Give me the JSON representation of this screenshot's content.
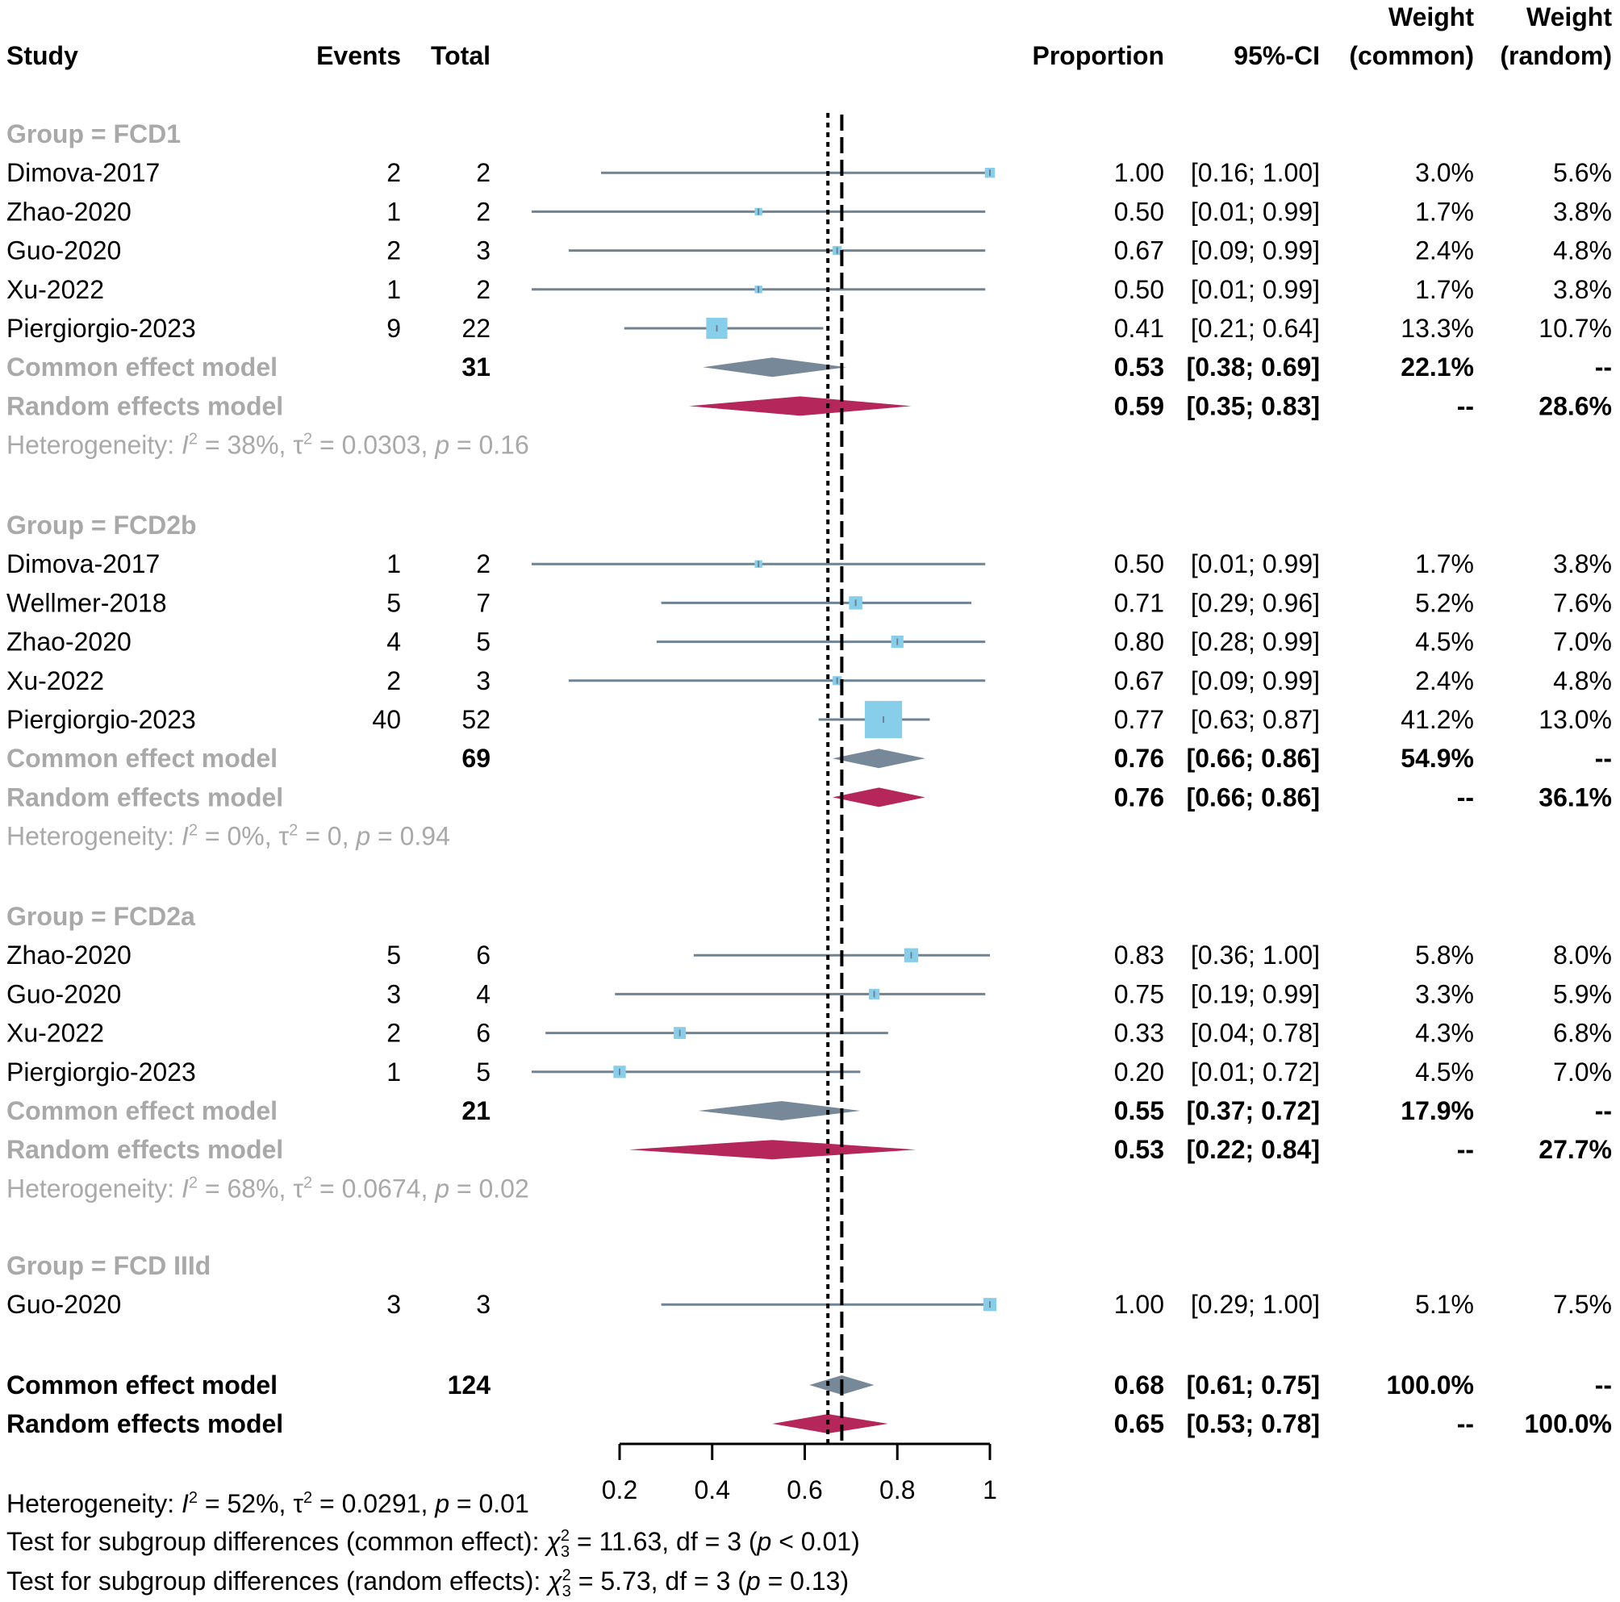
{
  "chart_data": {
    "type": "forest",
    "columns": {
      "study": "Study",
      "events": "Events",
      "total": "Total",
      "proportion": "Proportion",
      "ci": "95%-CI",
      "weight_common": [
        "Weight",
        "(common)"
      ],
      "weight_random": [
        "Weight",
        "(random)"
      ]
    },
    "xaxis": {
      "min": 0.2,
      "max": 1.0,
      "ticks": [
        "0.2",
        "0.4",
        "0.6",
        "0.8",
        "1"
      ],
      "tick_values": [
        0.2,
        0.4,
        0.6,
        0.8,
        1.0
      ]
    },
    "reference_lines": {
      "common": 0.68,
      "random": 0.65
    },
    "groups": [
      {
        "label": "Group = FCD1",
        "studies": [
          {
            "name": "Dimova-2017",
            "events": "2",
            "total": "2",
            "prop": "1.00",
            "ci": "[0.16; 1.00]",
            "wc": "3.0%",
            "wr": "5.6%",
            "est": 1.0,
            "lo": 0.16,
            "hi": 1.0,
            "w": 3.0
          },
          {
            "name": "Zhao-2020",
            "events": "1",
            "total": "2",
            "prop": "0.50",
            "ci": "[0.01; 0.99]",
            "wc": "1.7%",
            "wr": "3.8%",
            "est": 0.5,
            "lo": 0.01,
            "hi": 0.99,
            "w": 1.7
          },
          {
            "name": "Guo-2020",
            "events": "2",
            "total": "3",
            "prop": "0.67",
            "ci": "[0.09; 0.99]",
            "wc": "2.4%",
            "wr": "4.8%",
            "est": 0.67,
            "lo": 0.09,
            "hi": 0.99,
            "w": 2.4
          },
          {
            "name": "Xu-2022",
            "events": "1",
            "total": "2",
            "prop": "0.50",
            "ci": "[0.01; 0.99]",
            "wc": "1.7%",
            "wr": "3.8%",
            "est": 0.5,
            "lo": 0.01,
            "hi": 0.99,
            "w": 1.7
          },
          {
            "name": "Piergiorgio-2023",
            "events": "9",
            "total": "22",
            "prop": "0.41",
            "ci": "[0.21; 0.64]",
            "wc": "13.3%",
            "wr": "10.7%",
            "est": 0.41,
            "lo": 0.21,
            "hi": 0.64,
            "w": 13.3
          }
        ],
        "common": {
          "label": "Common effect model",
          "total": "31",
          "prop": "0.53",
          "ci": "[0.38; 0.69]",
          "wc": "22.1%",
          "wr": "--",
          "est": 0.53,
          "lo": 0.38,
          "hi": 0.69
        },
        "random": {
          "label": "Random effects model",
          "prop": "0.59",
          "ci": "[0.35; 0.83]",
          "wc": "--",
          "wr": "28.6%",
          "est": 0.59,
          "lo": 0.35,
          "hi": 0.83
        },
        "het": {
          "pre": "Heterogeneity: ",
          "i": "I",
          "rest1": " = 38%, τ",
          "rest2": " = 0.0303, ",
          "p": "p",
          "rest3": " = 0.16"
        }
      },
      {
        "label": "Group = FCD2b",
        "studies": [
          {
            "name": "Dimova-2017",
            "events": "1",
            "total": "2",
            "prop": "0.50",
            "ci": "[0.01; 0.99]",
            "wc": "1.7%",
            "wr": "3.8%",
            "est": 0.5,
            "lo": 0.01,
            "hi": 0.99,
            "w": 1.7
          },
          {
            "name": "Wellmer-2018",
            "events": "5",
            "total": "7",
            "prop": "0.71",
            "ci": "[0.29; 0.96]",
            "wc": "5.2%",
            "wr": "7.6%",
            "est": 0.71,
            "lo": 0.29,
            "hi": 0.96,
            "w": 5.2
          },
          {
            "name": "Zhao-2020",
            "events": "4",
            "total": "5",
            "prop": "0.80",
            "ci": "[0.28; 0.99]",
            "wc": "4.5%",
            "wr": "7.0%",
            "est": 0.8,
            "lo": 0.28,
            "hi": 0.99,
            "w": 4.5
          },
          {
            "name": "Xu-2022",
            "events": "2",
            "total": "3",
            "prop": "0.67",
            "ci": "[0.09; 0.99]",
            "wc": "2.4%",
            "wr": "4.8%",
            "est": 0.67,
            "lo": 0.09,
            "hi": 0.99,
            "w": 2.4
          },
          {
            "name": "Piergiorgio-2023",
            "events": "40",
            "total": "52",
            "prop": "0.77",
            "ci": "[0.63; 0.87]",
            "wc": "41.2%",
            "wr": "13.0%",
            "est": 0.77,
            "lo": 0.63,
            "hi": 0.87,
            "w": 41.2
          }
        ],
        "common": {
          "label": "Common effect model",
          "total": "69",
          "prop": "0.76",
          "ci": "[0.66; 0.86]",
          "wc": "54.9%",
          "wr": "--",
          "est": 0.76,
          "lo": 0.66,
          "hi": 0.86
        },
        "random": {
          "label": "Random effects model",
          "prop": "0.76",
          "ci": "[0.66; 0.86]",
          "wc": "--",
          "wr": "36.1%",
          "est": 0.76,
          "lo": 0.66,
          "hi": 0.86
        },
        "het": {
          "pre": "Heterogeneity: ",
          "i": "I",
          "rest1": " = 0%, τ",
          "rest2": " = 0, ",
          "p": "p",
          "rest3": " = 0.94"
        }
      },
      {
        "label": "Group = FCD2a",
        "studies": [
          {
            "name": "Zhao-2020",
            "events": "5",
            "total": "6",
            "prop": "0.83",
            "ci": "[0.36; 1.00]",
            "wc": "5.8%",
            "wr": "8.0%",
            "est": 0.83,
            "lo": 0.36,
            "hi": 1.0,
            "w": 5.8
          },
          {
            "name": "Guo-2020",
            "events": "3",
            "total": "4",
            "prop": "0.75",
            "ci": "[0.19; 0.99]",
            "wc": "3.3%",
            "wr": "5.9%",
            "est": 0.75,
            "lo": 0.19,
            "hi": 0.99,
            "w": 3.3
          },
          {
            "name": "Xu-2022",
            "events": "2",
            "total": "6",
            "prop": "0.33",
            "ci": "[0.04; 0.78]",
            "wc": "4.3%",
            "wr": "6.8%",
            "est": 0.33,
            "lo": 0.04,
            "hi": 0.78,
            "w": 4.3
          },
          {
            "name": "Piergiorgio-2023",
            "events": "1",
            "total": "5",
            "prop": "0.20",
            "ci": "[0.01; 0.72]",
            "wc": "4.5%",
            "wr": "7.0%",
            "est": 0.2,
            "lo": 0.01,
            "hi": 0.72,
            "w": 4.5
          }
        ],
        "common": {
          "label": "Common effect model",
          "total": "21",
          "prop": "0.55",
          "ci": "[0.37; 0.72]",
          "wc": "17.9%",
          "wr": "--",
          "est": 0.55,
          "lo": 0.37,
          "hi": 0.72
        },
        "random": {
          "label": "Random effects model",
          "prop": "0.53",
          "ci": "[0.22; 0.84]",
          "wc": "--",
          "wr": "27.7%",
          "est": 0.53,
          "lo": 0.22,
          "hi": 0.84
        },
        "het": {
          "pre": "Heterogeneity: ",
          "i": "I",
          "rest1": " = 68%, τ",
          "rest2": " = 0.0674, ",
          "p": "p",
          "rest3": " = 0.02"
        }
      },
      {
        "label": "Group = FCD IIId",
        "studies": [
          {
            "name": "Guo-2020",
            "events": "3",
            "total": "3",
            "prop": "1.00",
            "ci": "[0.29; 1.00]",
            "wc": "5.1%",
            "wr": "7.5%",
            "est": 1.0,
            "lo": 0.29,
            "hi": 1.0,
            "w": 5.1
          }
        ]
      }
    ],
    "overall": {
      "common": {
        "label": "Common effect model",
        "total": "124",
        "prop": "0.68",
        "ci": "[0.61; 0.75]",
        "wc": "100.0%",
        "wr": "--",
        "est": 0.68,
        "lo": 0.61,
        "hi": 0.75
      },
      "random": {
        "label": "Random effects model",
        "prop": "0.65",
        "ci": "[0.53; 0.78]",
        "wc": "--",
        "wr": "100.0%",
        "est": 0.65,
        "lo": 0.53,
        "hi": 0.78
      }
    },
    "footer": {
      "het": {
        "pre": "Heterogeneity: ",
        "i": "I",
        "rest1": " = 52%, τ",
        "rest2": " = 0.0291, ",
        "p": "p",
        "rest3": " = 0.01"
      },
      "test_common": {
        "pre": "Test for subgroup differences (common effect): ",
        "chi": "χ",
        "sub": "3",
        "sup": "2",
        "mid": " = 11.63, df = 3 (",
        "p": "p",
        "post": " < 0.01)"
      },
      "test_random": {
        "pre": "Test for subgroup differences (random effects): ",
        "chi": "χ",
        "sub": "3",
        "sup": "2",
        "mid": " = 5.73, df = 3 (",
        "p": "p",
        "post": " = 0.13)"
      }
    },
    "colors": {
      "square": "#87ceeb",
      "ci_line": "#6f8393",
      "common_diamond": "#778899",
      "random_diamond": "#b5265a",
      "group_label": "#a9a9a9"
    }
  }
}
